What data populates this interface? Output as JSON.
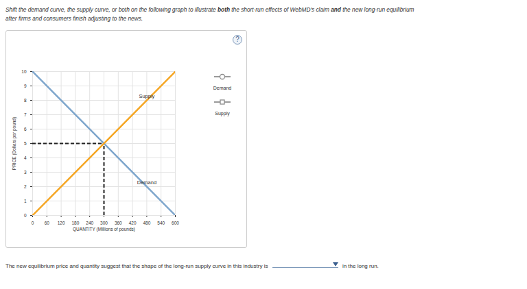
{
  "instructions": [
    {
      "text": "Shift the demand curve, the supply curve, or both on the following graph to illustrate "
    },
    {
      "text": "both",
      "bold": true
    },
    {
      "text": " the short-run effects of WebMD's claim "
    },
    {
      "text": "and",
      "bold": true
    },
    {
      "text": " the new long-run equilibrium after firms and consumers finish adjusting to the news."
    }
  ],
  "help_icon": "?",
  "chart_data": {
    "type": "line",
    "x": [
      0,
      600
    ],
    "series": [
      {
        "name": "Demand",
        "color": "#7ea6cc",
        "values": [
          10,
          0
        ],
        "marker": "circle"
      },
      {
        "name": "Supply",
        "color": "#f5a623",
        "values": [
          0,
          10
        ],
        "marker": "square"
      }
    ],
    "xlabel": "QUANTITY (Millions of pounds)",
    "ylabel": "PRICE (Dollars per pound)",
    "xlim": [
      0,
      600
    ],
    "ylim": [
      0,
      10
    ],
    "xticks": [
      0,
      60,
      120,
      180,
      240,
      300,
      360,
      420,
      480,
      540,
      600
    ],
    "yticks": [
      0,
      1,
      2,
      3,
      4,
      5,
      6,
      7,
      8,
      9,
      10
    ],
    "grid": true,
    "legend": "right",
    "equilibrium": {
      "x": 300,
      "y": 5,
      "line_style": "dashed"
    }
  },
  "question": {
    "before": "The new equilibrium price and quantity suggest that the shape of the long-run supply curve in this industry is",
    "after": "in the long run."
  }
}
